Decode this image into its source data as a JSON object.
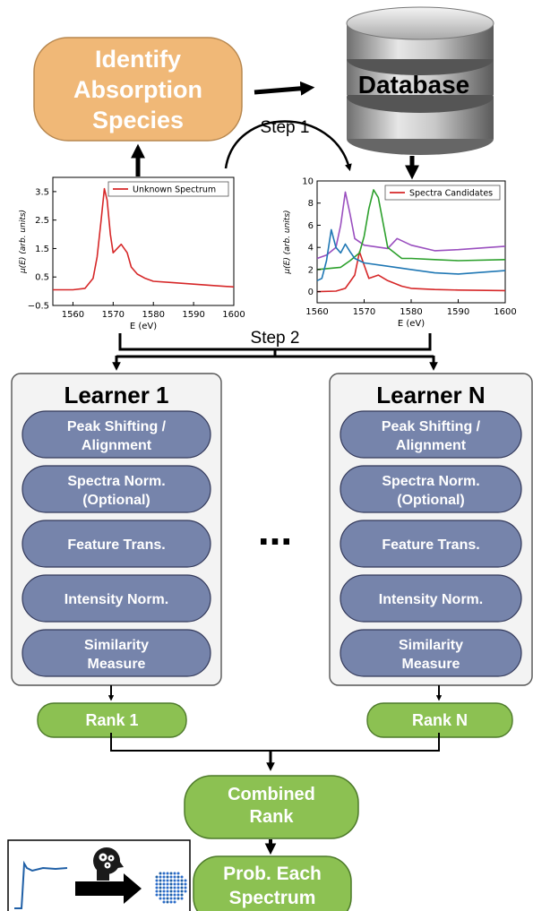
{
  "top": {
    "species_lines": [
      "Identify",
      "Absorption",
      "Species"
    ],
    "database_label": "Database",
    "step1": "Step 1",
    "step2": "Step 2"
  },
  "learners": [
    {
      "title": "Learner 1",
      "steps": [
        [
          "Peak Shifting /",
          "Alignment"
        ],
        [
          "Spectra Norm.",
          "(Optional)"
        ],
        [
          "Feature Trans."
        ],
        [
          "Intensity Norm."
        ],
        [
          "Similarity",
          "Measure"
        ]
      ],
      "rank": "Rank 1"
    },
    {
      "title": "Learner N",
      "steps": [
        [
          "Peak Shifting /",
          "Alignment"
        ],
        [
          "Spectra Norm.",
          "(Optional)"
        ],
        [
          "Feature Trans."
        ],
        [
          "Intensity Norm."
        ],
        [
          "Similarity",
          "Measure"
        ]
      ],
      "rank": "Rank N"
    }
  ],
  "ellipsis": "...",
  "combined_lines": [
    "Combined",
    "Rank"
  ],
  "prob_lines": [
    "Prob. Each",
    "Spectrum"
  ],
  "colors": {
    "species_fill": "#f0b877",
    "step_fill": "#7684ab",
    "rank_fill": "#8cc152",
    "learner_bg": "#f3f3f3",
    "red": "#d62728",
    "purple": "#9a4fbf",
    "green": "#2ca02c",
    "blue": "#1f77b4"
  },
  "chart_data": [
    {
      "type": "line",
      "xlabel": "E (eV)",
      "ylabel": "μ(E) (arb. units)",
      "xlim": [
        1555,
        1600
      ],
      "ylim": [
        -0.5,
        4.0
      ],
      "xticks": [
        1560,
        1570,
        1580,
        1590,
        1600
      ],
      "yticks": [
        -0.5,
        0.5,
        1.5,
        2.5,
        3.5
      ],
      "ytick_labels": [
        "−0.5",
        "0.5",
        "1.5",
        "2.5",
        "3.5"
      ],
      "legend_position": "top-right",
      "series": [
        {
          "name": "Unknown Spectrum",
          "color": "#d62728",
          "x": [
            1555,
            1560,
            1563,
            1565,
            1566,
            1567,
            1567.8,
            1568.5,
            1569.3,
            1570,
            1571,
            1572,
            1573.5,
            1574.5,
            1576,
            1578,
            1580,
            1585,
            1590,
            1595,
            1600
          ],
          "y": [
            0.05,
            0.05,
            0.1,
            0.45,
            1.2,
            2.5,
            3.6,
            3.2,
            2.0,
            1.35,
            1.5,
            1.65,
            1.35,
            0.85,
            0.6,
            0.45,
            0.35,
            0.3,
            0.25,
            0.2,
            0.15
          ]
        }
      ]
    },
    {
      "type": "line",
      "xlabel": "E (eV)",
      "ylabel": "μ(E) (arb. units)",
      "xlim": [
        1560,
        1600
      ],
      "ylim": [
        -1,
        10
      ],
      "xticks": [
        1560,
        1570,
        1580,
        1590,
        1600
      ],
      "yticks": [
        0,
        2,
        4,
        6,
        8,
        10
      ],
      "legend_position": "top-right",
      "series": [
        {
          "name": "Spectra Candidates",
          "color": "#d62728",
          "x": [
            1560,
            1564,
            1566,
            1568,
            1569,
            1570,
            1571,
            1573,
            1575,
            1578,
            1580,
            1585,
            1590,
            1600
          ],
          "y": [
            0,
            0.05,
            0.3,
            1.5,
            3.6,
            2.4,
            1.2,
            1.5,
            1.0,
            0.5,
            0.3,
            0.2,
            0.15,
            0.1
          ]
        },
        {
          "color": "#9a4fbf",
          "x": [
            1560,
            1562,
            1564,
            1565,
            1566,
            1567,
            1568,
            1570,
            1575,
            1577,
            1580,
            1585,
            1590,
            1600
          ],
          "y": [
            3.0,
            3.3,
            4.0,
            6.0,
            9.0,
            7.0,
            4.8,
            4.2,
            3.9,
            4.8,
            4.2,
            3.7,
            3.8,
            4.1
          ]
        },
        {
          "color": "#2ca02c",
          "x": [
            1560,
            1565,
            1567,
            1569,
            1570,
            1571,
            1572,
            1573,
            1575,
            1578,
            1580,
            1585,
            1590,
            1600
          ],
          "y": [
            2.0,
            2.2,
            2.8,
            3.5,
            5.0,
            7.5,
            9.2,
            8.5,
            4.0,
            3.0,
            3.0,
            2.9,
            2.8,
            2.9
          ]
        },
        {
          "color": "#1f77b4",
          "x": [
            1560,
            1561,
            1562,
            1563,
            1564,
            1565,
            1566,
            1567,
            1568,
            1570,
            1575,
            1580,
            1585,
            1590,
            1600
          ],
          "y": [
            1.0,
            1.2,
            2.8,
            5.6,
            4.0,
            3.5,
            4.3,
            3.6,
            3.0,
            2.6,
            2.3,
            2.0,
            1.7,
            1.6,
            1.9
          ]
        }
      ]
    }
  ]
}
